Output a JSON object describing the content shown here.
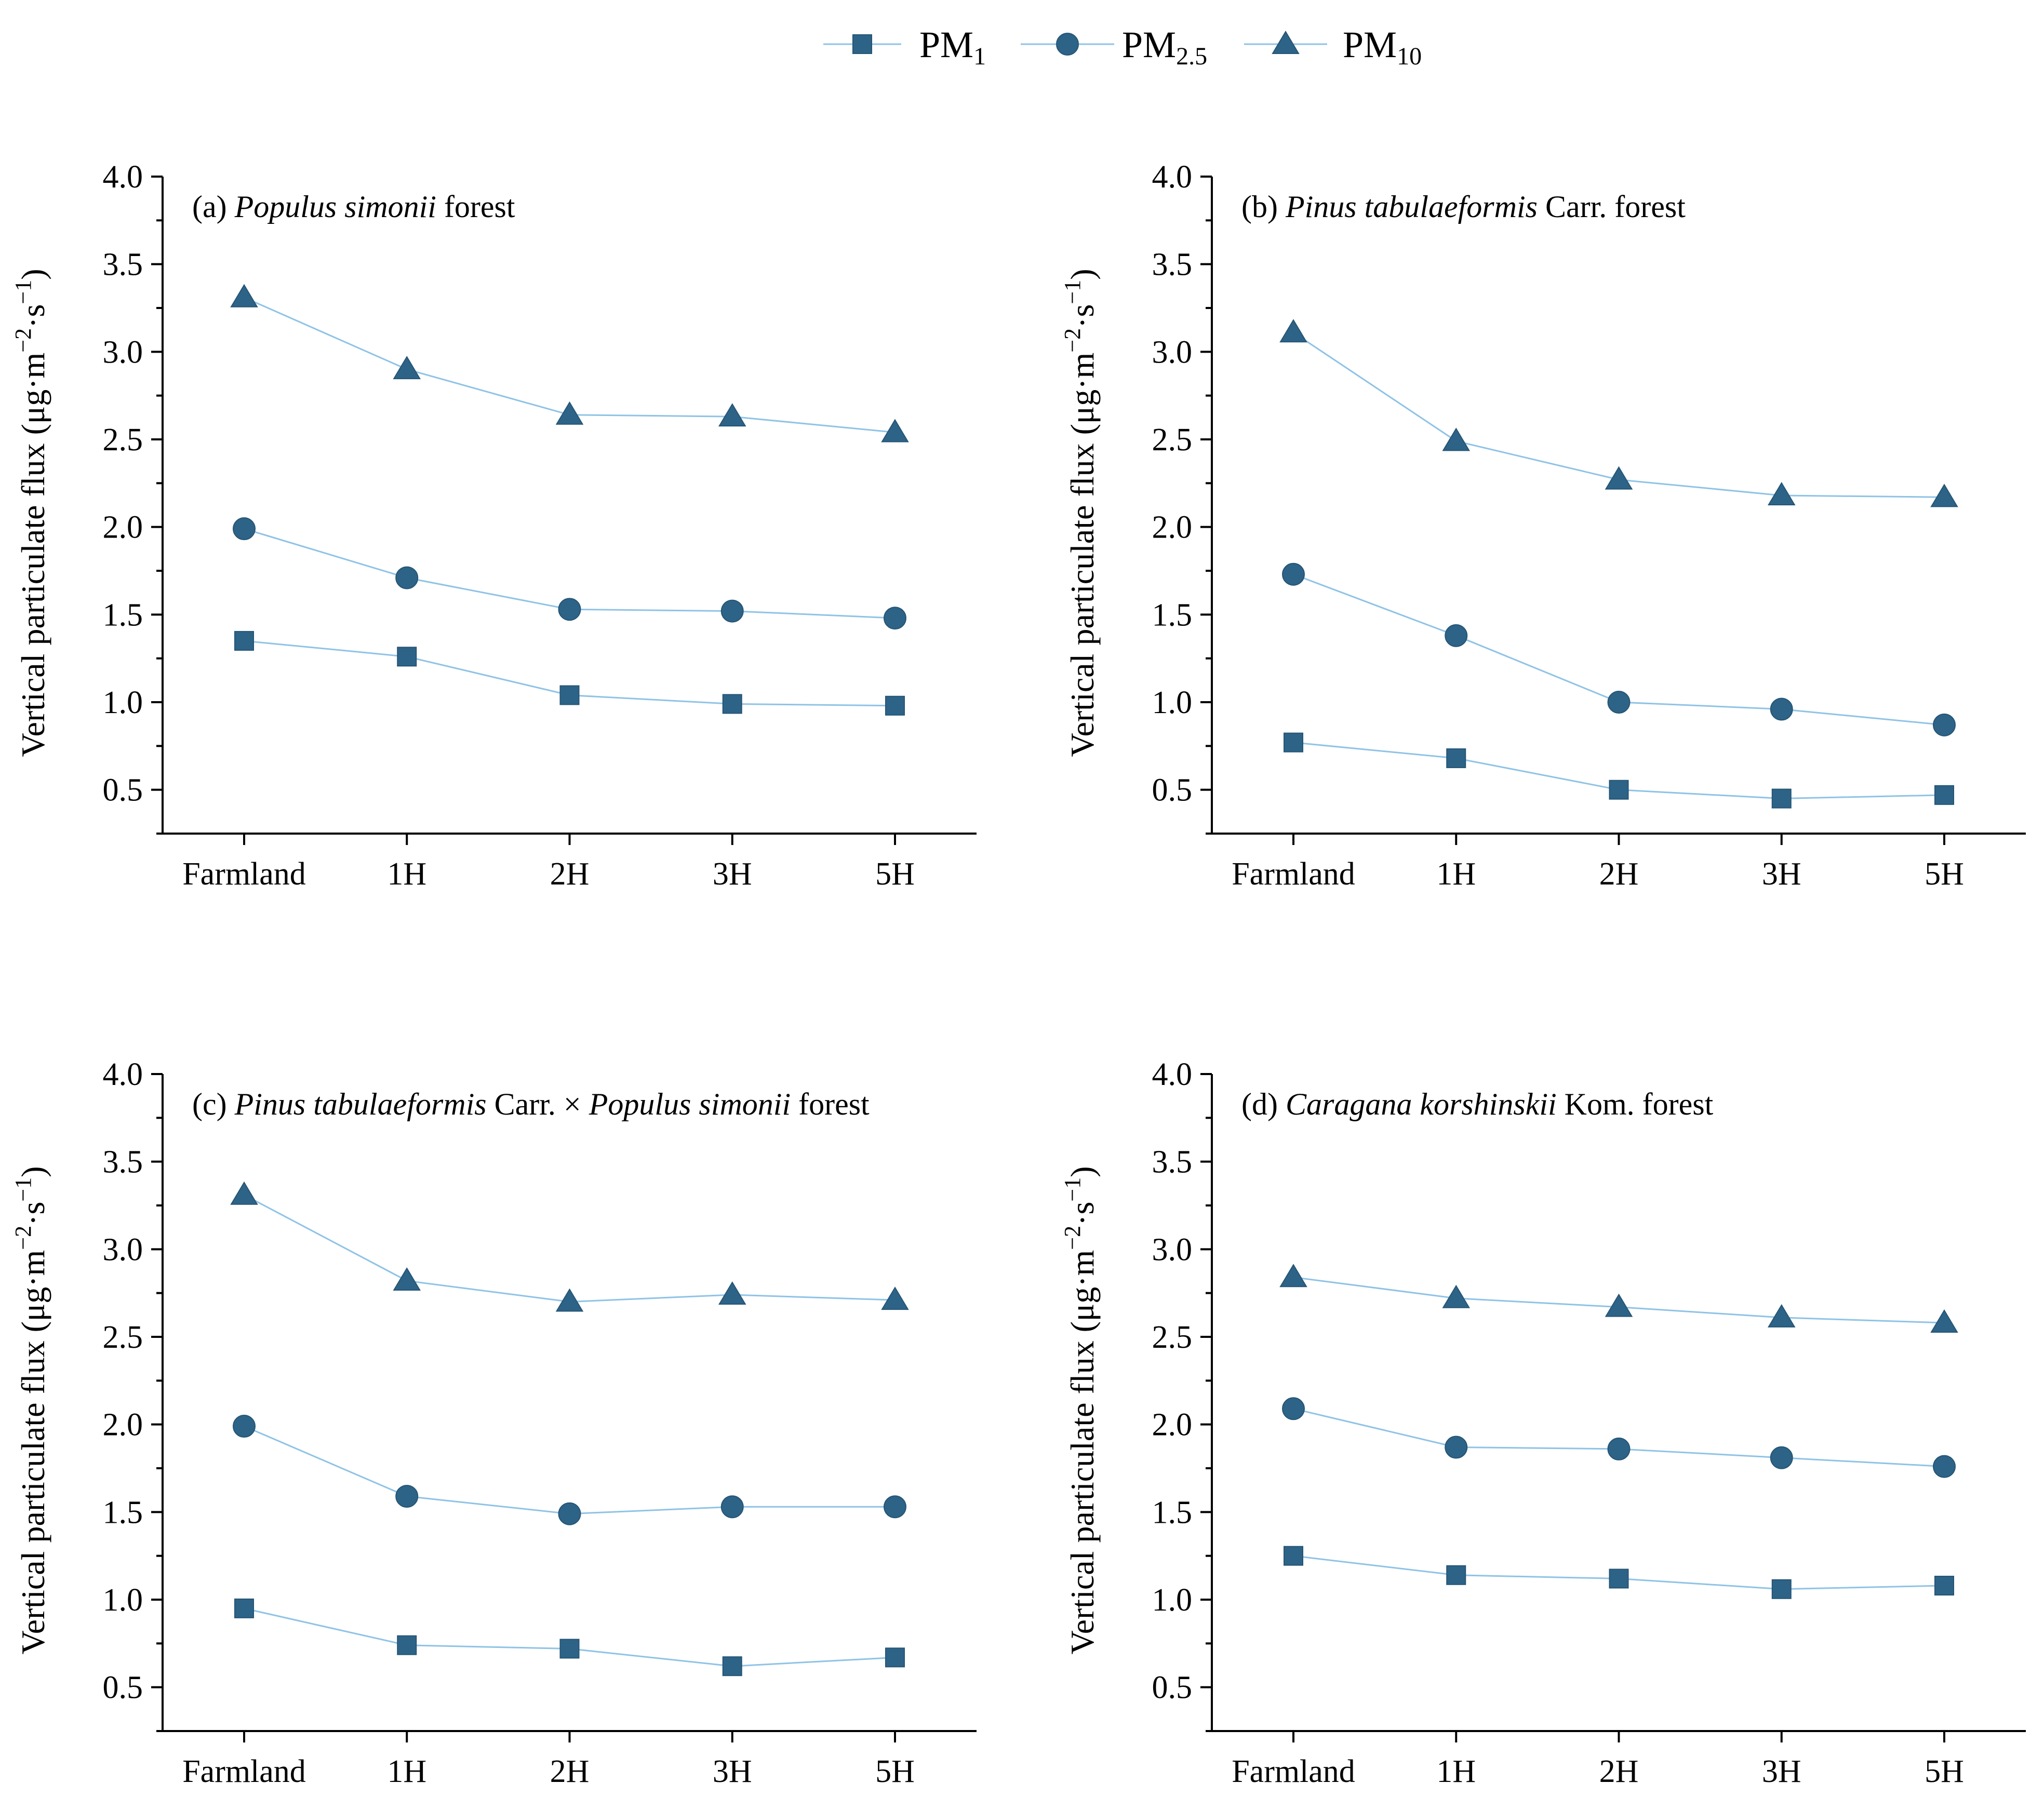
{
  "chart_data": {
    "type": "line",
    "legend": {
      "position": "top-center",
      "items": [
        {
          "series": "PM1",
          "base": "PM",
          "sub": "1",
          "marker": "square"
        },
        {
          "series": "PM2.5",
          "base": "PM",
          "sub": "2.5",
          "marker": "circle"
        },
        {
          "series": "PM10",
          "base": "PM",
          "sub": "10",
          "marker": "triangle"
        }
      ]
    },
    "categories": [
      "Farmland",
      "1H",
      "2H",
      "3H",
      "5H"
    ],
    "yticks": [
      "0.5",
      "1.0",
      "1.5",
      "2.0",
      "2.5",
      "3.0",
      "3.5",
      "4.0"
    ],
    "ylim": [
      0.25,
      4.0
    ],
    "colors": {
      "marker": "#2e6388",
      "line": "#8fc3e6",
      "axis": "#000000"
    },
    "panels": [
      {
        "title_parts": [
          {
            "text": "(a) ",
            "italic": false
          },
          {
            "text": "Populus simonii",
            "italic": true
          },
          {
            "text": " forest",
            "italic": false
          }
        ],
        "ylabel": {
          "main": "Vertical particulate flux (μg·m",
          "sup1": "−2",
          "mid": "·s",
          "sup2": "−1",
          "end": ")"
        },
        "series": [
          {
            "name": "PM1",
            "marker": "square",
            "values": [
              1.35,
              1.26,
              1.04,
              0.99,
              0.98
            ]
          },
          {
            "name": "PM2.5",
            "marker": "circle",
            "values": [
              1.99,
              1.71,
              1.53,
              1.52,
              1.48
            ]
          },
          {
            "name": "PM10",
            "marker": "triangle",
            "values": [
              3.31,
              2.9,
              2.64,
              2.63,
              2.54
            ]
          }
        ]
      },
      {
        "title_parts": [
          {
            "text": "(b) ",
            "italic": false
          },
          {
            "text": "Pinus tabulaeformis",
            "italic": true
          },
          {
            "text": " Carr. forest",
            "italic": false
          }
        ],
        "ylabel": {
          "main": "Vertical particulate flux (μg·m",
          "sup1": "−2",
          "mid": "·s",
          "sup2": "−1",
          "end": ")"
        },
        "series": [
          {
            "name": "PM1",
            "marker": "square",
            "values": [
              0.77,
              0.68,
              0.5,
              0.45,
              0.47
            ]
          },
          {
            "name": "PM2.5",
            "marker": "circle",
            "values": [
              1.73,
              1.38,
              1.0,
              0.96,
              0.87
            ]
          },
          {
            "name": "PM10",
            "marker": "triangle",
            "values": [
              3.11,
              2.49,
              2.27,
              2.18,
              2.17
            ]
          }
        ]
      },
      {
        "title_parts": [
          {
            "text": "(c) ",
            "italic": false
          },
          {
            "text": "Pinus tabulaeformis",
            "italic": true
          },
          {
            "text": " Carr. × ",
            "italic": false
          },
          {
            "text": "Populus simonii",
            "italic": true
          },
          {
            "text": " forest",
            "italic": false
          }
        ],
        "ylabel": {
          "main": "Vertical particulate flux (μg·m",
          "sup1": "−2",
          "mid": "·s",
          "sup2": "−1",
          "end": ")"
        },
        "series": [
          {
            "name": "PM1",
            "marker": "square",
            "values": [
              0.95,
              0.74,
              0.72,
              0.62,
              0.67
            ]
          },
          {
            "name": "PM2.5",
            "marker": "circle",
            "values": [
              1.99,
              1.59,
              1.49,
              1.53,
              1.53
            ]
          },
          {
            "name": "PM10",
            "marker": "triangle",
            "values": [
              3.31,
              2.82,
              2.7,
              2.74,
              2.71
            ]
          }
        ]
      },
      {
        "title_parts": [
          {
            "text": "(d) ",
            "italic": false
          },
          {
            "text": "Caragana korshinskii",
            "italic": true
          },
          {
            "text": " Kom. forest",
            "italic": false
          }
        ],
        "ylabel": {
          "main": "Vertical particulate flux (μg·m",
          "sup1": "−2",
          "mid": "·s",
          "sup2": "−1",
          "end": ")"
        },
        "series": [
          {
            "name": "PM1",
            "marker": "square",
            "values": [
              1.25,
              1.14,
              1.12,
              1.06,
              1.08
            ]
          },
          {
            "name": "PM2.5",
            "marker": "circle",
            "values": [
              2.09,
              1.87,
              1.86,
              1.81,
              1.76
            ]
          },
          {
            "name": "PM10",
            "marker": "triangle",
            "values": [
              2.84,
              2.72,
              2.67,
              2.61,
              2.58
            ]
          }
        ]
      }
    ]
  }
}
